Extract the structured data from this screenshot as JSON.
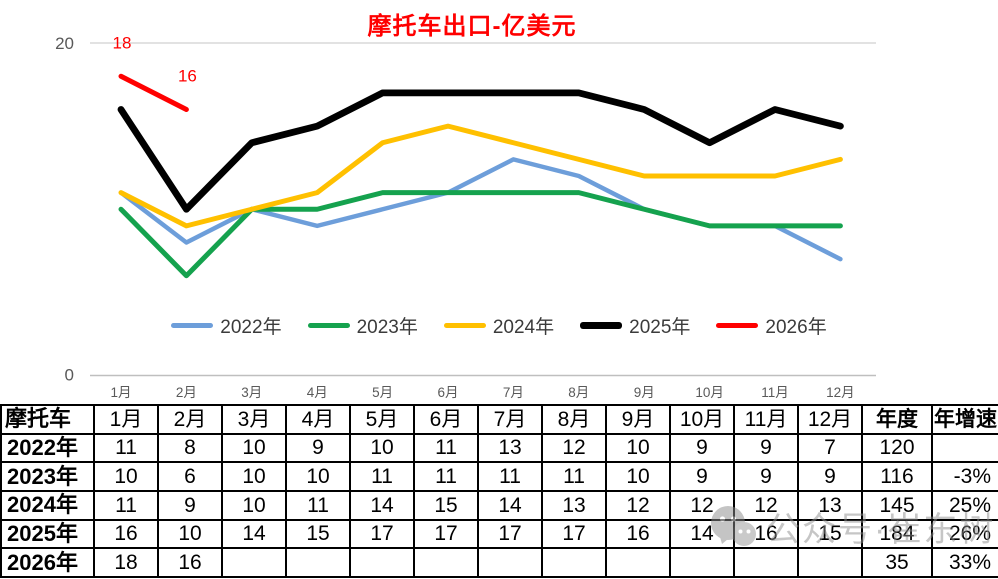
{
  "title": "摩托车出口-亿美元",
  "chart_data": {
    "type": "line",
    "title": "摩托车出口-亿美元",
    "x_labels": [
      "1月",
      "2月",
      "3月",
      "4月",
      "5月",
      "6月",
      "7月",
      "8月",
      "9月",
      "10月",
      "11月",
      "12月"
    ],
    "xlabel": "",
    "ylabel": "",
    "ylim": [
      0,
      20
    ],
    "y_tick_labels": [
      "20",
      "0"
    ],
    "grid": "top-gridline-only",
    "legend_position": "bottom-center",
    "series": [
      {
        "name": "2022年",
        "color": "#6d9eda",
        "values": [
          11,
          8,
          10,
          9,
          10,
          11,
          13,
          12,
          10,
          9,
          9,
          7
        ]
      },
      {
        "name": "2023年",
        "color": "#15a24e",
        "values": [
          10,
          6,
          10,
          10,
          11,
          11,
          11,
          11,
          10,
          9,
          9,
          9
        ]
      },
      {
        "name": "2024年",
        "color": "#ffc000",
        "values": [
          11,
          9,
          10,
          11,
          14,
          15,
          14,
          13,
          12,
          12,
          12,
          13
        ]
      },
      {
        "name": "2025年",
        "color": "#000000",
        "values": [
          16,
          10,
          14,
          15,
          17,
          17,
          17,
          17,
          16,
          14,
          16,
          15
        ]
      },
      {
        "name": "2026年",
        "color": "#ff0000",
        "values": [
          18,
          16
        ],
        "show_data_labels": true,
        "data_labels": [
          "18",
          "16"
        ]
      }
    ]
  },
  "table": {
    "header": [
      "摩托车",
      "1月",
      "2月",
      "3月",
      "4月",
      "5月",
      "6月",
      "7月",
      "8月",
      "9月",
      "10月",
      "11月",
      "12月",
      "年度",
      "年增速"
    ],
    "rows": [
      {
        "label": "2022年",
        "cells": [
          "11",
          "8",
          "10",
          "9",
          "10",
          "11",
          "13",
          "12",
          "10",
          "9",
          "9",
          "7",
          "120",
          ""
        ]
      },
      {
        "label": "2023年",
        "cells": [
          "10",
          "6",
          "10",
          "10",
          "11",
          "11",
          "11",
          "11",
          "10",
          "9",
          "9",
          "9",
          "116",
          "-3%"
        ]
      },
      {
        "label": "2024年",
        "cells": [
          "11",
          "9",
          "10",
          "11",
          "14",
          "15",
          "14",
          "13",
          "12",
          "12",
          "12",
          "13",
          "145",
          "25%"
        ]
      },
      {
        "label": "2025年",
        "cells": [
          "16",
          "10",
          "14",
          "15",
          "17",
          "17",
          "17",
          "17",
          "16",
          "14",
          "16",
          "15",
          "184",
          "26%"
        ]
      },
      {
        "label": "2026年",
        "cells": [
          "18",
          "16",
          "",
          "",
          "",
          "",
          "",
          "",
          "",
          "",
          "",
          "",
          "35",
          "33%"
        ]
      }
    ]
  },
  "watermark": {
    "icon": "wechat-icon",
    "text": "公众号·崔东树"
  },
  "colors": {
    "title": "#ff0000",
    "gridline": "#d9d9d9",
    "axis_line": "#bfbfbf",
    "tick_text": "#595959"
  }
}
